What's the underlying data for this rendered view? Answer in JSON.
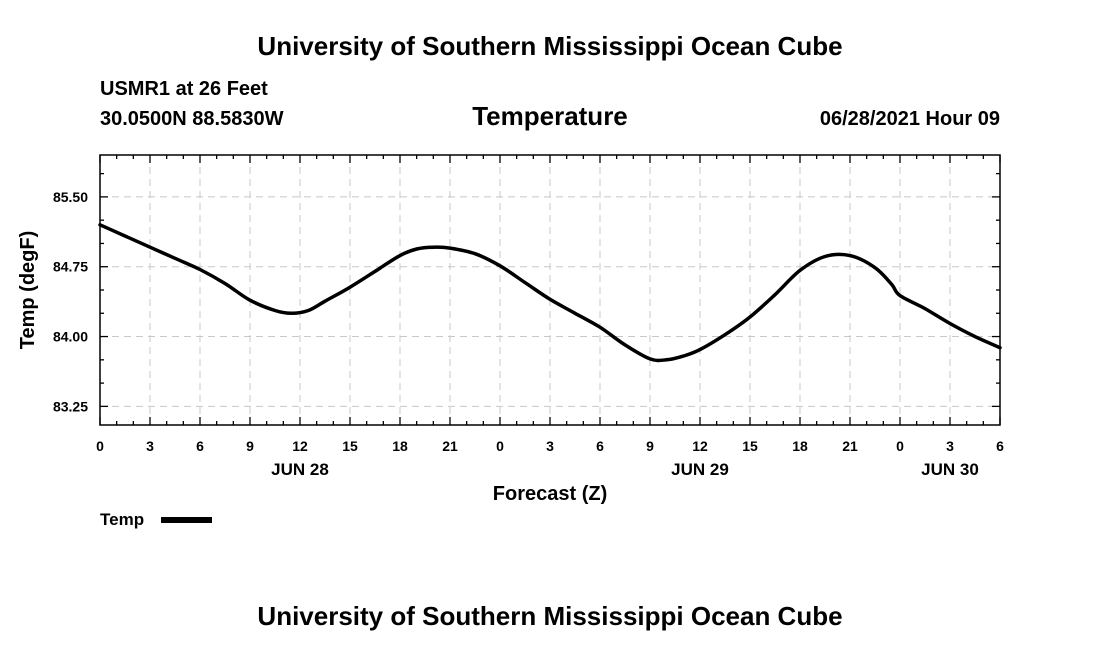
{
  "page": {
    "title_top": "University of Southern Mississippi Ocean Cube",
    "title_bottom": "University of Southern Mississippi Ocean Cube",
    "station": "USMR1 at 26 Feet",
    "coords": "30.0500N  88.5830W",
    "variable": "Temperature",
    "timestamp": "06/28/2021 Hour 09"
  },
  "chart_data": {
    "type": "line",
    "xlabel": "Forecast (Z)",
    "ylabel": "Temp (degF)",
    "x_unit": "forecast hour",
    "xlim": [
      0,
      54
    ],
    "ylim": [
      83.05,
      85.95
    ],
    "yticks": [
      83.25,
      84.0,
      84.75,
      85.5
    ],
    "ytick_labels": [
      "83.25",
      "84.00",
      "84.75",
      "85.50"
    ],
    "xticks": [
      0,
      3,
      6,
      9,
      12,
      15,
      18,
      21,
      24,
      27,
      30,
      33,
      36,
      39,
      42,
      45,
      48,
      51,
      54
    ],
    "xtick_labels": [
      "0",
      "3",
      "6",
      "9",
      "12",
      "15",
      "18",
      "21",
      "0",
      "3",
      "6",
      "9",
      "12",
      "15",
      "18",
      "21",
      "0",
      "3",
      "6"
    ],
    "day_labels": [
      {
        "x": 12,
        "label": "JUN 28"
      },
      {
        "x": 36,
        "label": "JUN 29"
      },
      {
        "x": 51,
        "label": "JUN 30"
      }
    ],
    "grid": true,
    "legend": "bottom-left",
    "series": [
      {
        "name": "Temp",
        "color": "#000000",
        "x": [
          0,
          1.5,
          3,
          4.5,
          6,
          7.5,
          9,
          10.5,
          11.5,
          12.5,
          13.5,
          15,
          16.5,
          18,
          19,
          20,
          21,
          22.5,
          24,
          25.5,
          27,
          28.5,
          30,
          31.5,
          33,
          34,
          35,
          36,
          37.5,
          39,
          40.5,
          42,
          43.5,
          45,
          46.5,
          47.5,
          48,
          49.5,
          51,
          52.5,
          54
        ],
        "y": [
          85.2,
          85.08,
          84.96,
          84.84,
          84.72,
          84.57,
          84.39,
          84.28,
          84.25,
          84.28,
          84.38,
          84.53,
          84.7,
          84.87,
          84.94,
          84.96,
          84.95,
          84.89,
          84.76,
          84.58,
          84.4,
          84.25,
          84.1,
          83.91,
          83.76,
          83.75,
          83.79,
          83.86,
          84.02,
          84.21,
          84.45,
          84.71,
          84.86,
          84.87,
          84.74,
          84.56,
          84.44,
          84.3,
          84.14,
          84.0,
          83.88
        ]
      }
    ]
  }
}
